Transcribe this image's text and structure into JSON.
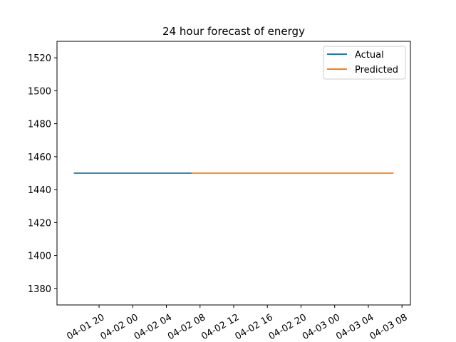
{
  "chart_data": {
    "type": "line",
    "title": "24 hour forecast of energy",
    "xlabel": "",
    "ylabel": "",
    "x_ticks": [
      "04-01 20",
      "04-02 00",
      "04-02 04",
      "04-02 08",
      "04-02 12",
      "04-02 16",
      "04-02 20",
      "04-03 00",
      "04-03 04",
      "04-03 08"
    ],
    "y_ticks": [
      1380,
      1400,
      1420,
      1440,
      1460,
      1480,
      1500,
      1520
    ],
    "ylim": [
      1370,
      1530
    ],
    "xlim": [
      "2024-04-01 15:00",
      "2024-04-03 09:00"
    ],
    "legend_position": "top-right",
    "grid": false,
    "series": [
      {
        "name": "Actual",
        "color": "#1f77b4",
        "x": [
          "2024-04-01 17:00",
          "2024-04-02 07:00"
        ],
        "y": [
          1450,
          1450
        ]
      },
      {
        "name": "Predicted",
        "color": "#ff7f0e",
        "x": [
          "2024-04-02 07:00",
          "2024-04-03 07:00"
        ],
        "y": [
          1450,
          1450
        ]
      }
    ]
  }
}
